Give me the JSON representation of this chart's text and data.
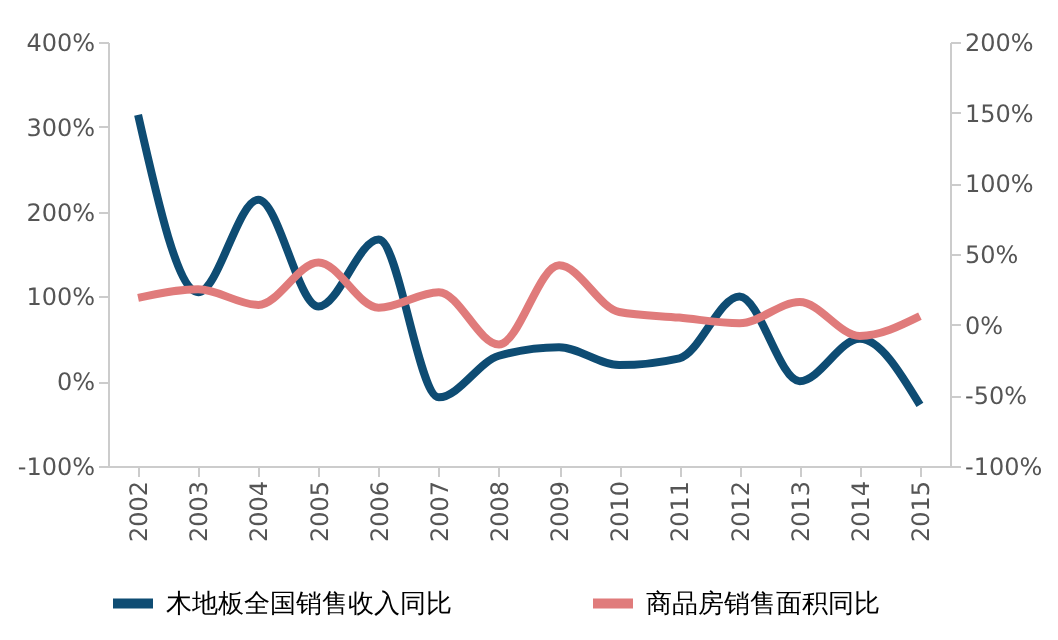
{
  "chart_data": {
    "type": "line",
    "categories": [
      "2002",
      "2003",
      "2004",
      "2005",
      "2006",
      "2007",
      "2008",
      "2009",
      "2010",
      "2011",
      "2012",
      "2013",
      "2014",
      "2015"
    ],
    "series": [
      {
        "name": "木地板全国销售收入同比",
        "color": "#0e4c73",
        "values": [
          314,
          105,
          214,
          88,
          167,
          -19,
          30,
          40,
          19,
          27,
          100,
          0,
          50,
          -28
        ]
      },
      {
        "name": "商品房销售面积同比",
        "color": "#e07b7b",
        "axis": "y2",
        "values": [
          19,
          25,
          14,
          44,
          12,
          23,
          -14,
          42,
          9,
          5,
          1,
          16,
          -8,
          6
        ]
      }
    ],
    "ylim": [
      -100,
      400
    ],
    "yticks": [
      {
        "value": -100,
        "label": "-100%"
      },
      {
        "value": 0,
        "label": "0%"
      },
      {
        "value": 100,
        "label": "100%"
      },
      {
        "value": 200,
        "label": "200%"
      },
      {
        "value": 300,
        "label": "300%"
      },
      {
        "value": 400,
        "label": "400%"
      }
    ],
    "y2lim": [
      -100,
      200
    ],
    "y2ticks": [
      {
        "value": -100,
        "label": "-100%"
      },
      {
        "value": -50,
        "label": "-50%"
      },
      {
        "value": 0,
        "label": "0%"
      },
      {
        "value": 50,
        "label": "50%"
      },
      {
        "value": 100,
        "label": "100%"
      },
      {
        "value": 150,
        "label": "150%"
      },
      {
        "value": 200,
        "label": "200%"
      }
    ],
    "grid": false,
    "legend": "bottom",
    "marker": "none",
    "line_style": "solid"
  }
}
